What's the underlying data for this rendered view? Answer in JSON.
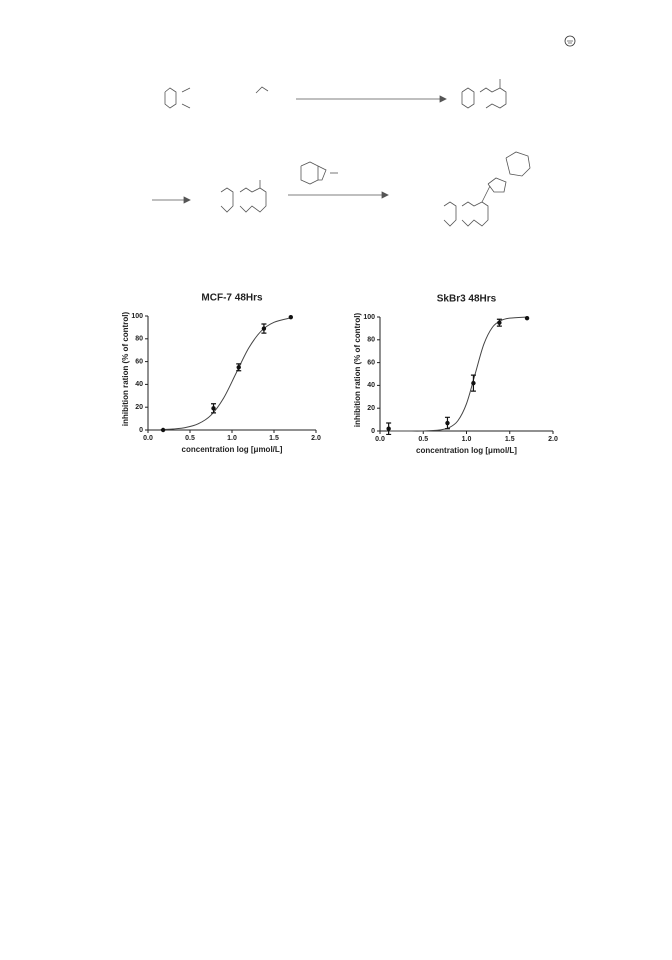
{
  "chart_data": [
    {
      "type": "scatter",
      "title": "MCF-7  48Hrs",
      "xlabel": "concentration log [μmol/L]",
      "ylabel": "inhibition ration (% of control)",
      "x": [
        0.18,
        0.78,
        1.08,
        1.38,
        1.7
      ],
      "values": [
        0,
        19,
        55,
        89,
        99
      ],
      "errors": [
        null,
        4,
        3,
        4,
        null
      ],
      "curve": {
        "x": [
          0.15,
          0.3,
          0.45,
          0.6,
          0.75,
          0.9,
          1.05,
          1.2,
          1.35,
          1.5,
          1.7
        ],
        "y": [
          0.3,
          0.9,
          2.2,
          5.5,
          13,
          28,
          50,
          72,
          87,
          94.5,
          98.4
        ]
      },
      "color": "#111111",
      "xlim": [
        0,
        2
      ],
      "xticks": [
        {
          "value": 0,
          "label": "0.0"
        },
        0.5,
        {
          "value": 1,
          "label": "1.0"
        },
        1.5,
        {
          "value": 2,
          "label": "2.0"
        }
      ],
      "ylim": [
        0,
        100
      ],
      "yticks": [
        0,
        20,
        40,
        60,
        80,
        100
      ]
    },
    {
      "type": "scatter",
      "title": "SkBr3 48Hrs",
      "xlabel": "concentration log [μmol/L]",
      "ylabel": "inhibition ration (% of control)",
      "x": [
        0.1,
        0.78,
        1.08,
        1.38,
        1.7
      ],
      "values": [
        2,
        7,
        42,
        95,
        99
      ],
      "errors": [
        5,
        5,
        7,
        3,
        null
      ],
      "curve": {
        "x": [
          0.1,
          0.3,
          0.5,
          0.7,
          0.8,
          0.9,
          1.0,
          1.1,
          1.2,
          1.3,
          1.4,
          1.5,
          1.7
        ],
        "y": [
          0,
          0,
          0,
          1,
          3,
          9,
          24,
          50,
          76,
          91,
          97,
          99,
          100
        ]
      },
      "color": "#111111",
      "xlim": [
        0,
        2
      ],
      "xticks": [
        {
          "value": 0,
          "label": "0.0"
        },
        0.5,
        {
          "value": 1,
          "label": "1.0"
        },
        1.5,
        {
          "value": 2,
          "label": "2.0"
        }
      ],
      "ylim": [
        0,
        100
      ],
      "yticks": [
        0,
        20,
        40,
        60,
        80,
        100
      ]
    }
  ]
}
